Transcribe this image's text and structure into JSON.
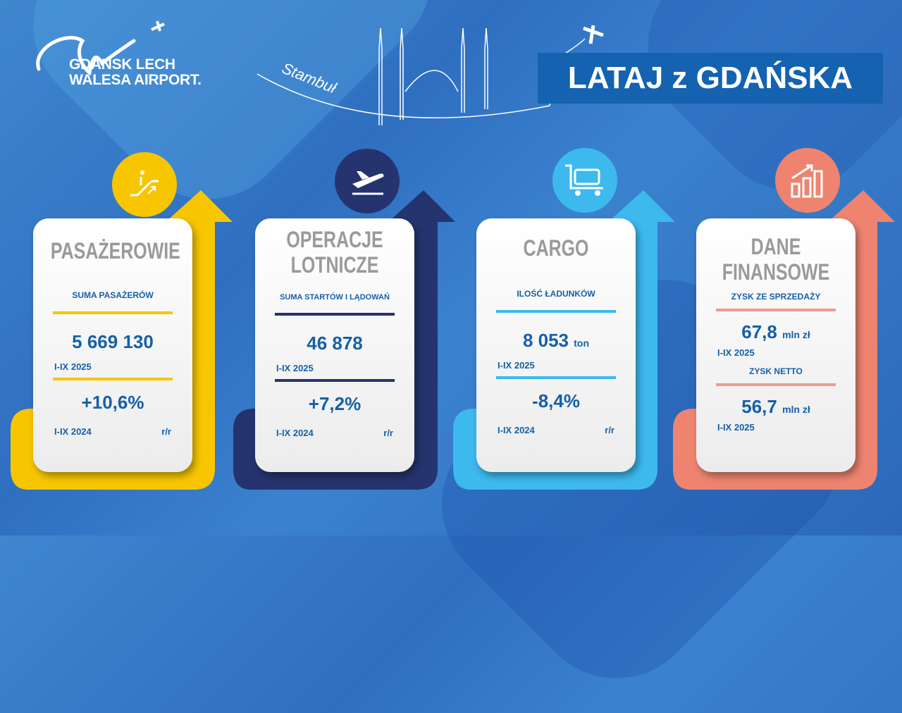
{
  "logo": {
    "line1": "GDANSK LECH",
    "line2": "WALESA AIRPORT."
  },
  "destination": "Stambuł",
  "banner": "LATAJ z GDAŃSKA",
  "colors": {
    "yellow": "#F7C600",
    "navy": "#25346E",
    "sky": "#3DB9EE",
    "salmon": "#EE8470",
    "text": "#1560A8"
  },
  "cards": [
    {
      "title": "PASAŻEROWIE",
      "label": "SUMA PASAŻERÓW",
      "value": "5 669 130",
      "period": "I-IX 2025",
      "change": "+10,6%",
      "prev": "I-IX 2024",
      "yoy": "r/r",
      "icon": "escalator-icon"
    },
    {
      "title1": "OPERACJE",
      "title2": "LOTNICZE",
      "label": "SUMA STARTÓW I LĄDOWAŃ",
      "value": "46 878",
      "period": "I-IX 2025",
      "change": "+7,2%",
      "prev": "I-IX 2024",
      "yoy": "r/r",
      "icon": "plane-departure-icon"
    },
    {
      "title": "CARGO",
      "label": "ILOŚĆ ŁADUNKÓW",
      "value": "8 053",
      "unit": "ton",
      "period": "I-IX 2025",
      "change": "-8,4%",
      "prev": "I-IX 2024",
      "yoy": "r/r",
      "icon": "luggage-cart-icon"
    },
    {
      "title1": "DANE",
      "title2": "FINANSOWE",
      "label1": "ZYSK ZE SPRZEDAŻY",
      "value1": "67,8",
      "unit": "mln zł",
      "period1": "I-IX 2025",
      "label2": "ZYSK NETTO",
      "value2": "56,7",
      "period2": "I-IX 2025",
      "icon": "growth-chart-icon"
    }
  ]
}
